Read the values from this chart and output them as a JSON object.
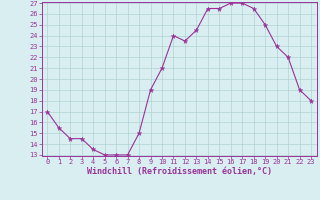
{
  "x": [
    0,
    1,
    2,
    3,
    4,
    5,
    6,
    7,
    8,
    9,
    10,
    11,
    12,
    13,
    14,
    15,
    16,
    17,
    18,
    19,
    20,
    21,
    22,
    23
  ],
  "y": [
    17,
    15.5,
    14.5,
    14.5,
    13.5,
    13,
    13,
    13,
    15,
    19,
    21,
    24,
    23.5,
    24.5,
    26.5,
    26.5,
    27,
    27,
    26.5,
    25,
    23,
    22,
    19,
    18
  ],
  "line_color": "#993399",
  "marker_color": "#993399",
  "bg_color": "#d8eef0",
  "grid_color": "#aacccc",
  "xlabel": "Windchill (Refroidissement éolien,°C)",
  "xlabel_color": "#993399",
  "ylim": [
    13,
    27
  ],
  "xlim": [
    -0.5,
    23.5
  ],
  "yticks": [
    13,
    14,
    15,
    16,
    17,
    18,
    19,
    20,
    21,
    22,
    23,
    24,
    25,
    26,
    27
  ],
  "xticks": [
    0,
    1,
    2,
    3,
    4,
    5,
    6,
    7,
    8,
    9,
    10,
    11,
    12,
    13,
    14,
    15,
    16,
    17,
    18,
    19,
    20,
    21,
    22,
    23
  ],
  "tick_color": "#993399",
  "spine_color": "#993399",
  "font_family": "monospace",
  "tick_fontsize": 5,
  "xlabel_fontsize": 6
}
